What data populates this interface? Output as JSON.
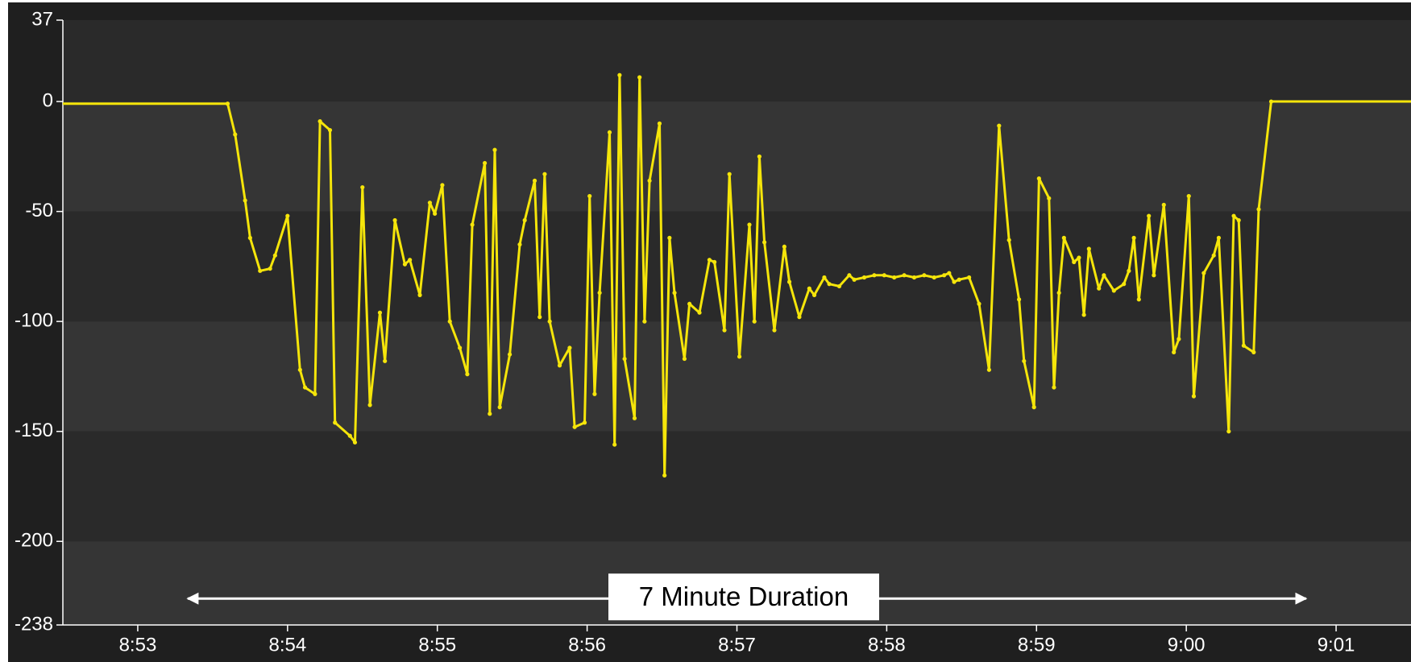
{
  "chart_data": {
    "type": "line",
    "title": "",
    "xlabel": "",
    "ylabel": "",
    "ylim": [
      -238,
      37
    ],
    "yticks": [
      37,
      0,
      -50,
      -100,
      -150,
      -200,
      -238
    ],
    "xlim": [
      "8:52:30",
      "9:01:30"
    ],
    "xticks": [
      "8:53",
      "8:54",
      "8:55",
      "8:56",
      "8:57",
      "8:58",
      "8:59",
      "9:00",
      "9:01"
    ],
    "grid": "alternating horizontal bands",
    "series": [
      {
        "color": "#f5e50a",
        "points": [
          [
            "8:52:30",
            -1
          ],
          [
            "8:53:36",
            -1
          ],
          [
            "8:53:39",
            -15
          ],
          [
            "8:53:43",
            -45
          ],
          [
            "8:53:45",
            -62
          ],
          [
            "8:53:49",
            -77
          ],
          [
            "8:53:53",
            -76
          ],
          [
            "8:53:55",
            -70
          ],
          [
            "8:54:00",
            -52
          ],
          [
            "8:54:05",
            -122
          ],
          [
            "8:54:07",
            -130
          ],
          [
            "8:54:11",
            -133
          ],
          [
            "8:54:13",
            -9
          ],
          [
            "8:54:17",
            -13
          ],
          [
            "8:54:19",
            -146
          ],
          [
            "8:54:25",
            -152
          ],
          [
            "8:54:27",
            -155
          ],
          [
            "8:54:30",
            -39
          ],
          [
            "8:54:33",
            -138
          ],
          [
            "8:54:37",
            -96
          ],
          [
            "8:54:39",
            -118
          ],
          [
            "8:54:43",
            -54
          ],
          [
            "8:54:47",
            -74
          ],
          [
            "8:54:49",
            -72
          ],
          [
            "8:54:53",
            -88
          ],
          [
            "8:54:57",
            -46
          ],
          [
            "8:54:59",
            -51
          ],
          [
            "8:55:02",
            -38
          ],
          [
            "8:55:05",
            -100
          ],
          [
            "8:55:09",
            -112
          ],
          [
            "8:55:12",
            -124
          ],
          [
            "8:55:14",
            -56
          ],
          [
            "8:55:19",
            -28
          ],
          [
            "8:55:21",
            -142
          ],
          [
            "8:55:23",
            -22
          ],
          [
            "8:55:25",
            -139
          ],
          [
            "8:55:29",
            -115
          ],
          [
            "8:55:33",
            -65
          ],
          [
            "8:55:35",
            -54
          ],
          [
            "8:55:39",
            -36
          ],
          [
            "8:55:41",
            -98
          ],
          [
            "8:55:43",
            -33
          ],
          [
            "8:55:45",
            -100
          ],
          [
            "8:55:49",
            -120
          ],
          [
            "8:55:53",
            -112
          ],
          [
            "8:55:55",
            -148
          ],
          [
            "8:55:59",
            -146
          ],
          [
            "8:56:01",
            -43
          ],
          [
            "8:56:03",
            -133
          ],
          [
            "8:56:05",
            -87
          ],
          [
            "8:56:09",
            -14
          ],
          [
            "8:56:11",
            -156
          ],
          [
            "8:56:13",
            12
          ],
          [
            "8:56:15",
            -117
          ],
          [
            "8:56:19",
            -144
          ],
          [
            "8:56:21",
            11
          ],
          [
            "8:56:23",
            -100
          ],
          [
            "8:56:25",
            -36
          ],
          [
            "8:56:29",
            -10
          ],
          [
            "8:56:31",
            -170
          ],
          [
            "8:56:33",
            -62
          ],
          [
            "8:56:35",
            -87
          ],
          [
            "8:56:39",
            -117
          ],
          [
            "8:56:41",
            -92
          ],
          [
            "8:56:45",
            -96
          ],
          [
            "8:56:49",
            -72
          ],
          [
            "8:56:51",
            -73
          ],
          [
            "8:56:55",
            -104
          ],
          [
            "8:56:57",
            -33
          ],
          [
            "8:57:01",
            -116
          ],
          [
            "8:57:05",
            -56
          ],
          [
            "8:57:07",
            -100
          ],
          [
            "8:57:09",
            -25
          ],
          [
            "8:57:11",
            -64
          ],
          [
            "8:57:15",
            -104
          ],
          [
            "8:57:19",
            -66
          ],
          [
            "8:57:21",
            -82
          ],
          [
            "8:57:25",
            -98
          ],
          [
            "8:57:29",
            -85
          ],
          [
            "8:57:31",
            -88
          ],
          [
            "8:57:35",
            -80
          ],
          [
            "8:57:37",
            -83
          ],
          [
            "8:57:41",
            -84
          ],
          [
            "8:57:45",
            -79
          ],
          [
            "8:57:47",
            -81
          ],
          [
            "8:57:51",
            -80
          ],
          [
            "8:57:55",
            -79
          ],
          [
            "8:57:59",
            -79
          ],
          [
            "8:58:03",
            -80
          ],
          [
            "8:58:07",
            -79
          ],
          [
            "8:58:11",
            -80
          ],
          [
            "8:58:15",
            -79
          ],
          [
            "8:58:19",
            -80
          ],
          [
            "8:58:23",
            -79
          ],
          [
            "8:58:25",
            -78
          ],
          [
            "8:58:27",
            -82
          ],
          [
            "8:58:29",
            -81
          ],
          [
            "8:58:33",
            -80
          ],
          [
            "8:58:37",
            -92
          ],
          [
            "8:58:41",
            -122
          ],
          [
            "8:58:45",
            -11
          ],
          [
            "8:58:49",
            -63
          ],
          [
            "8:58:53",
            -90
          ],
          [
            "8:58:55",
            -118
          ],
          [
            "8:58:59",
            -139
          ],
          [
            "8:59:01",
            -35
          ],
          [
            "8:59:05",
            -44
          ],
          [
            "8:59:07",
            -130
          ],
          [
            "8:59:09",
            -87
          ],
          [
            "8:59:11",
            -62
          ],
          [
            "8:59:15",
            -73
          ],
          [
            "8:59:17",
            -71
          ],
          [
            "8:59:19",
            -97
          ],
          [
            "8:59:21",
            -67
          ],
          [
            "8:59:25",
            -85
          ],
          [
            "8:59:27",
            -79
          ],
          [
            "8:59:31",
            -86
          ],
          [
            "8:59:35",
            -83
          ],
          [
            "8:59:37",
            -77
          ],
          [
            "8:59:39",
            -62
          ],
          [
            "8:59:41",
            -90
          ],
          [
            "8:59:45",
            -52
          ],
          [
            "8:59:47",
            -79
          ],
          [
            "8:59:51",
            -47
          ],
          [
            "8:59:55",
            -114
          ],
          [
            "8:59:57",
            -108
          ],
          [
            "9:00:01",
            -43
          ],
          [
            "9:00:03",
            -134
          ],
          [
            "9:00:07",
            -78
          ],
          [
            "9:00:11",
            -70
          ],
          [
            "9:00:13",
            -62
          ],
          [
            "9:00:17",
            -150
          ],
          [
            "9:00:19",
            -52
          ],
          [
            "9:00:21",
            -54
          ],
          [
            "9:00:23",
            -111
          ],
          [
            "9:00:27",
            -114
          ],
          [
            "9:00:29",
            -49
          ],
          [
            "9:00:34",
            0
          ],
          [
            "9:01:30",
            0
          ]
        ]
      }
    ],
    "annotation": {
      "label": "7 Minute Duration",
      "x_start": "8:53:20",
      "x_end": "9:00:48",
      "y": -226
    }
  }
}
